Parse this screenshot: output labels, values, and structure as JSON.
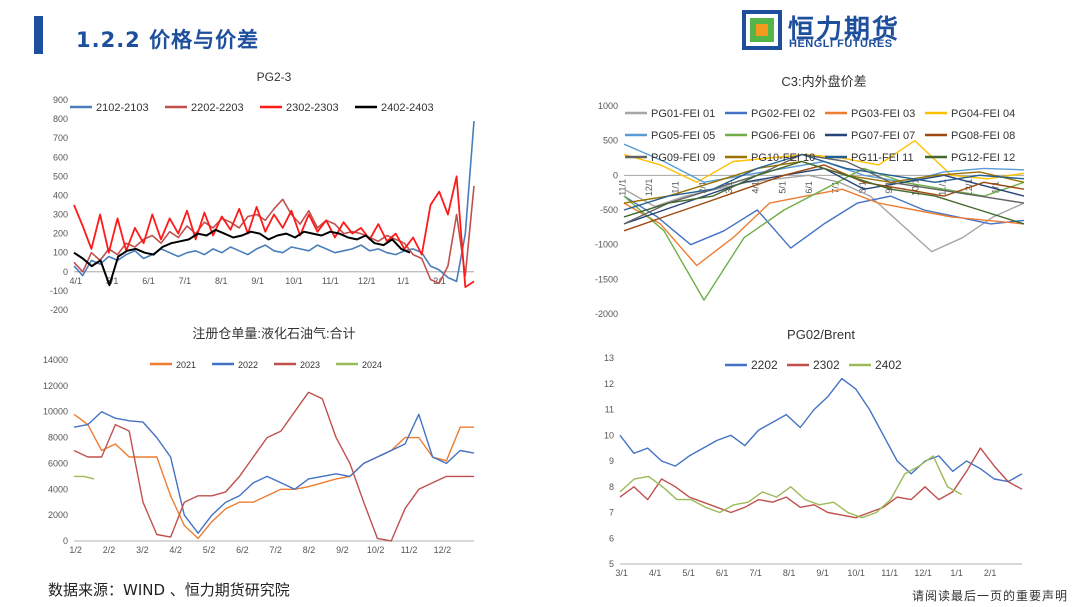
{
  "header": {
    "section_title": "1.2.2 价格与价差",
    "logo_cn": "恒力期货",
    "logo_en": "HENGLI FUTURES"
  },
  "footer": {
    "source": "数据来源：WIND 、恒力期货研究院",
    "disclaimer": "请阅读最后一页的重要声明"
  },
  "colors": {
    "brand": "#1d4f9c",
    "logo_green": "#52b748",
    "logo_orange": "#f39a1d"
  },
  "chart_data": [
    {
      "type": "line",
      "title": "PG2-3",
      "x_ticks": [
        "4/1",
        "5/1",
        "6/1",
        "7/1",
        "8/1",
        "9/1",
        "10/1",
        "11/1",
        "12/1",
        "1/1",
        "2/1"
      ],
      "ylim": [
        -200,
        900
      ],
      "y_ticks": [
        -200,
        -100,
        0,
        100,
        200,
        300,
        400,
        500,
        600,
        700,
        800,
        900
      ],
      "legend": "top",
      "grid": false,
      "series": [
        {
          "name": "2102-2103",
          "color": "#4a7ebb",
          "width": 1.6,
          "values": [
            30,
            -20,
            60,
            40,
            80,
            60,
            90,
            110,
            70,
            90,
            120,
            100,
            80,
            100,
            110,
            90,
            120,
            100,
            130,
            110,
            90,
            120,
            140,
            110,
            100,
            130,
            120,
            110,
            140,
            120,
            100,
            110,
            120,
            140,
            110,
            120,
            100,
            90,
            110,
            120,
            100,
            30,
            10,
            -30,
            -50,
            200,
            790
          ]
        },
        {
          "name": "2202-2203",
          "color": "#c0504d",
          "width": 1.6,
          "values": [
            50,
            0,
            100,
            60,
            120,
            90,
            150,
            130,
            170,
            190,
            150,
            210,
            180,
            240,
            200,
            260,
            230,
            280,
            260,
            230,
            290,
            300,
            270,
            330,
            380,
            300,
            250,
            320,
            230,
            270,
            250,
            200,
            210,
            200,
            180,
            160,
            190,
            170,
            150,
            90,
            70,
            -40,
            -60,
            30,
            300,
            -20,
            450
          ]
        },
        {
          "name": "2302-2303",
          "color": "#ff1a1a",
          "width": 1.8,
          "values": [
            350,
            240,
            120,
            300,
            100,
            280,
            110,
            230,
            150,
            300,
            170,
            280,
            200,
            320,
            170,
            310,
            190,
            290,
            220,
            330,
            200,
            340,
            210,
            300,
            230,
            320,
            190,
            300,
            210,
            270,
            180,
            260,
            200,
            230,
            170,
            250,
            160,
            200,
            120,
            180,
            90,
            350,
            420,
            300,
            500,
            -80,
            -50
          ]
        },
        {
          "name": "2402-2403",
          "color": "#000000",
          "width": 2.0,
          "values": [
            100,
            70,
            30,
            60,
            -70,
            80,
            110,
            120,
            100,
            90,
            130,
            150,
            160,
            170,
            200,
            190,
            220,
            200,
            180,
            190,
            210,
            200,
            170,
            190,
            200,
            180,
            210,
            200,
            190,
            210,
            200,
            180,
            170,
            190,
            150,
            140,
            170,
            120,
            100
          ]
        }
      ]
    },
    {
      "type": "line",
      "title": "C3:内外盘价差",
      "x_ticks": [
        "11/1",
        "12/1",
        "1/1",
        "2/1",
        "3/1",
        "4/1",
        "5/1",
        "6/1",
        "7/1",
        "8/1",
        "9/1",
        "10/1",
        "11/1",
        "12/1",
        "1/1"
      ],
      "ylim": [
        -2000,
        1000
      ],
      "y_ticks": [
        -2000,
        -1500,
        -1000,
        -500,
        0,
        500,
        1000
      ],
      "legend": "top",
      "grid": false,
      "series": [
        {
          "name": "PG01-FEI 01",
          "color": "#a5a5a5",
          "values": [
            -200,
            -450,
            -300,
            -200,
            -100,
            -50,
            0,
            -100,
            -300,
            -700,
            -1100,
            -900,
            -600,
            -400
          ]
        },
        {
          "name": "PG02-FEI 02",
          "color": "#4472c4",
          "values": [
            -300,
            -600,
            -1000,
            -800,
            -500,
            -1050,
            -700,
            -400,
            -300,
            -500,
            -600,
            -700,
            -650
          ]
        },
        {
          "name": "PG03-FEI 03",
          "color": "#ed7d31",
          "values": [
            -400,
            -700,
            -1300,
            -900,
            -400,
            -300,
            -200,
            -400,
            -500,
            -600,
            -650,
            -700
          ]
        },
        {
          "name": "PG04-FEI 04",
          "color": "#ffc000",
          "values": [
            300,
            150,
            -100,
            200,
            250,
            300,
            250,
            150,
            500,
            0,
            -50,
            30
          ]
        },
        {
          "name": "PG05-FEI 05",
          "color": "#5b9bd5",
          "values": [
            450,
            200,
            -100,
            0,
            100,
            200,
            0,
            -100,
            50,
            100,
            80
          ]
        },
        {
          "name": "PG06-FEI 06",
          "color": "#70ad47",
          "values": [
            -300,
            -800,
            -1800,
            -900,
            -500,
            -200,
            100,
            -100,
            -200,
            -300,
            -100
          ]
        },
        {
          "name": "PG07-FEI 07",
          "color": "#264478",
          "values": [
            -700,
            -500,
            -300,
            -100,
            0,
            100,
            -200,
            -100,
            0,
            -150,
            -300
          ]
        },
        {
          "name": "PG08-FEI 08",
          "color": "#9e480e",
          "values": [
            -800,
            -600,
            -400,
            -200,
            0,
            150,
            -100,
            -200,
            -300,
            -100,
            -200
          ]
        },
        {
          "name": "PG09-FEI 09",
          "color": "#636363",
          "values": [
            -700,
            -400,
            -200,
            0,
            300,
            200,
            -100,
            -200,
            -300,
            -400
          ]
        },
        {
          "name": "PG10-FEI 10",
          "color": "#997300",
          "values": [
            -400,
            -300,
            -100,
            100,
            200,
            0,
            -100,
            0,
            50,
            -100
          ]
        },
        {
          "name": "PG11-FEI 11",
          "color": "#255e91",
          "values": [
            -500,
            -300,
            -200,
            100,
            300,
            100,
            0,
            -100,
            0,
            -50
          ]
        },
        {
          "name": "PG12-FEI 12",
          "color": "#43682b",
          "values": [
            -600,
            -400,
            -300,
            0,
            200,
            0,
            -200,
            -300,
            -500,
            -700
          ]
        }
      ]
    },
    {
      "type": "line",
      "title": "注册仓单量:液化石油气:合计",
      "x_ticks": [
        "1/2",
        "2/2",
        "3/2",
        "4/2",
        "5/2",
        "6/2",
        "7/2",
        "8/2",
        "9/2",
        "10/2",
        "11/2",
        "12/2"
      ],
      "ylim": [
        0,
        14000
      ],
      "y_ticks": [
        0,
        2000,
        4000,
        6000,
        8000,
        10000,
        12000,
        14000
      ],
      "legend": "top",
      "grid": false,
      "series": [
        {
          "name": "2021",
          "color": "#ed7d31",
          "values": [
            9800,
            9000,
            7000,
            7500,
            6500,
            6500,
            6500,
            3500,
            1200,
            200,
            1500,
            2500,
            3000,
            3000,
            3500,
            4000,
            4000,
            4200,
            4500,
            4800,
            5000,
            6000,
            6500,
            7000,
            8000,
            8000,
            6500,
            6200,
            8800,
            8800
          ]
        },
        {
          "name": "2022",
          "color": "#4472c4",
          "values": [
            8800,
            9000,
            10000,
            9500,
            9300,
            9200,
            8000,
            6500,
            2000,
            600,
            2000,
            3000,
            3500,
            4500,
            5000,
            4500,
            4000,
            4800,
            5000,
            5200,
            5000,
            6000,
            6500,
            7000,
            7500,
            9800,
            6500,
            6000,
            7000,
            6800
          ]
        },
        {
          "name": "2023",
          "color": "#c0504d",
          "values": [
            7000,
            6500,
            6500,
            9000,
            8500,
            3000,
            500,
            300,
            3000,
            3500,
            3500,
            3800,
            5000,
            6500,
            8000,
            8500,
            10000,
            11500,
            11000,
            8000,
            6000,
            3000,
            200,
            0,
            2500,
            4000,
            4500,
            5000,
            5000,
            5000
          ]
        },
        {
          "name": "2024",
          "color": "#9bbb59",
          "values": [
            5000,
            5000,
            4800
          ]
        }
      ]
    },
    {
      "type": "line",
      "title": "PG02/Brent",
      "x_ticks": [
        "3/1",
        "4/1",
        "5/1",
        "6/1",
        "7/1",
        "8/1",
        "9/1",
        "10/1",
        "11/1",
        "12/1",
        "1/1",
        "2/1"
      ],
      "ylim": [
        5,
        13
      ],
      "y_ticks": [
        5,
        6,
        7,
        8,
        9,
        10,
        11,
        12,
        13
      ],
      "legend": "top",
      "grid": false,
      "series": [
        {
          "name": "2202",
          "color": "#4472c4",
          "values": [
            10,
            9.3,
            9.5,
            9.0,
            8.8,
            9.2,
            9.5,
            9.8,
            10,
            9.6,
            10.2,
            10.5,
            10.8,
            10.3,
            11,
            11.5,
            12.2,
            11.8,
            11,
            10,
            9,
            8.5,
            9,
            9.2,
            8.6,
            9,
            8.7,
            8.3,
            8.2,
            8.5
          ]
        },
        {
          "name": "2302",
          "color": "#c0504d",
          "values": [
            7.6,
            8.0,
            7.5,
            8.3,
            8.0,
            7.6,
            7.4,
            7.2,
            7.0,
            7.2,
            7.5,
            7.4,
            7.6,
            7.2,
            7.3,
            7.0,
            6.9,
            6.8,
            7.0,
            7.2,
            7.6,
            7.5,
            8.0,
            7.5,
            7.8,
            8.6,
            9.5,
            8.8,
            8.2,
            7.9
          ]
        },
        {
          "name": "2402",
          "color": "#9bbb59",
          "values": [
            7.8,
            8.3,
            8.4,
            8.0,
            7.5,
            7.5,
            7.2,
            7.0,
            7.3,
            7.4,
            7.8,
            7.6,
            8.0,
            7.5,
            7.3,
            7.4,
            7.0,
            6.8,
            7.0,
            7.5,
            8.5,
            8.8,
            9.2,
            8.0,
            7.7
          ]
        }
      ]
    }
  ]
}
